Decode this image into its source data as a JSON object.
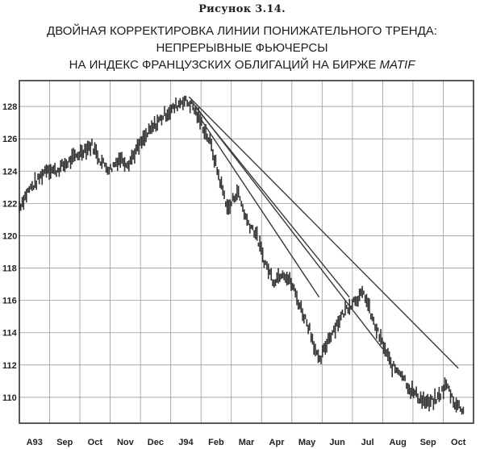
{
  "figure": {
    "caption": "Рисунок 3.14.",
    "title_line1": "ДВОЙНАЯ КОРРЕКТИРОВКА ЛИНИИ ПОНИЖАТЕЛЬНОГО ТРЕНДА:",
    "title_line2": "НЕПРЕРЫВНЫЕ ФЬЮЧЕРСЫ",
    "title_line3_prefix": "НА ИНДЕКС ФРАНЦУЗСКИХ ОБЛИГАЦИЙ НА БИРЖЕ ",
    "title_line3_italic": "MATIF"
  },
  "chart_data": {
    "type": "line",
    "style": "daily bar chart (high-low bars)",
    "title": "ДВОЙНАЯ КОРРЕКТИРОВКА ЛИНИИ ПОНИЖАТЕЛЬНОГО ТРЕНДА: НЕПРЕРЫВНЫЕ ФЬЮЧЕРСЫ НА ИНДЕКС ФРАНЦУЗСКИХ ОБЛИГАЦИЙ НА БИРЖЕ MATIF",
    "grid": true,
    "ylim": [
      108.4,
      129.6
    ],
    "y_ticks": [
      110,
      112,
      114,
      116,
      118,
      120,
      122,
      124,
      126,
      128
    ],
    "x_tick_labels": [
      "A93",
      "Sep",
      "Oct",
      "Nov",
      "Dec",
      "J94",
      "Feb",
      "Mar",
      "Apr",
      "May",
      "Jun",
      "Jul",
      "Aug",
      "Sep",
      "Oct"
    ],
    "x_index_range": [
      0,
      15
    ],
    "series": [
      {
        "values_x_month_index": [
          0.0,
          0.3,
          0.6,
          0.9,
          1.2,
          1.5,
          1.8,
          2.1,
          2.4,
          2.7,
          3.0,
          3.3,
          3.6,
          3.9,
          4.2,
          4.5,
          4.8,
          5.1,
          5.4,
          5.7,
          6.0,
          6.3,
          6.6,
          6.9,
          7.2,
          7.5,
          7.8,
          8.1,
          8.4,
          8.7,
          9.0,
          9.3,
          9.6,
          9.9,
          10.2,
          10.5,
          10.8,
          11.1,
          11.4,
          11.7,
          12.0,
          12.3,
          12.6,
          12.9,
          13.2,
          13.5,
          13.8,
          14.1,
          14.4,
          14.7
        ],
        "values_price": [
          121.8,
          122.8,
          123.4,
          124.2,
          124.0,
          124.4,
          124.8,
          125.3,
          125.6,
          124.6,
          124.1,
          124.8,
          124.5,
          125.4,
          126.2,
          126.9,
          127.5,
          127.9,
          128.4,
          128.1,
          127.0,
          125.8,
          123.6,
          121.6,
          122.8,
          121.0,
          120.2,
          118.4,
          117.2,
          117.8,
          117.0,
          115.5,
          114.2,
          112.1,
          113.6,
          114.6,
          115.5,
          116.1,
          116.4,
          114.6,
          113.3,
          111.9,
          111.6,
          110.5,
          110.0,
          109.6,
          109.9,
          110.8,
          109.6,
          109.2
        ]
      }
    ],
    "trend_lines": [
      {
        "from": [
          5.6,
          128.6
        ],
        "to": [
          14.5,
          111.8
        ]
      },
      {
        "from": [
          5.7,
          128.3
        ],
        "to": [
          12.0,
          113.0
        ]
      },
      {
        "from": [
          5.8,
          128.0
        ],
        "to": [
          10.9,
          116.2
        ]
      },
      {
        "from": [
          6.0,
          127.2
        ],
        "to": [
          9.9,
          116.2
        ]
      }
    ],
    "xlabel": "",
    "ylabel": ""
  },
  "colors": {
    "bars": "#333333",
    "trend_lines": "#3a3a3a",
    "grid": "#9a9a9a",
    "frame": "#222222",
    "text": "#222222"
  }
}
